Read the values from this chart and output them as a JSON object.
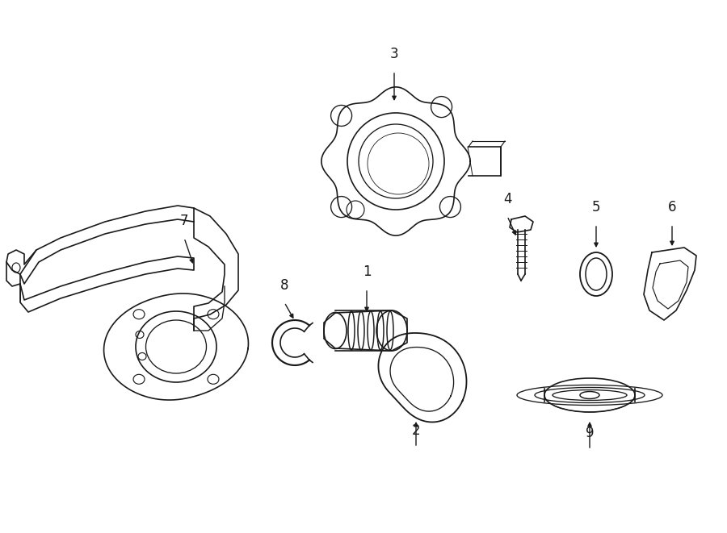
{
  "bg_color": "#ffffff",
  "line_color": "#1a1a1a",
  "lw": 1.2,
  "parts": [
    {
      "id": 1,
      "label": "1"
    },
    {
      "id": 2,
      "label": "2"
    },
    {
      "id": 3,
      "label": "3"
    },
    {
      "id": 4,
      "label": "4"
    },
    {
      "id": 5,
      "label": "5"
    },
    {
      "id": 6,
      "label": "6"
    },
    {
      "id": 7,
      "label": "7"
    },
    {
      "id": 8,
      "label": "8"
    },
    {
      "id": 9,
      "label": "9"
    }
  ]
}
